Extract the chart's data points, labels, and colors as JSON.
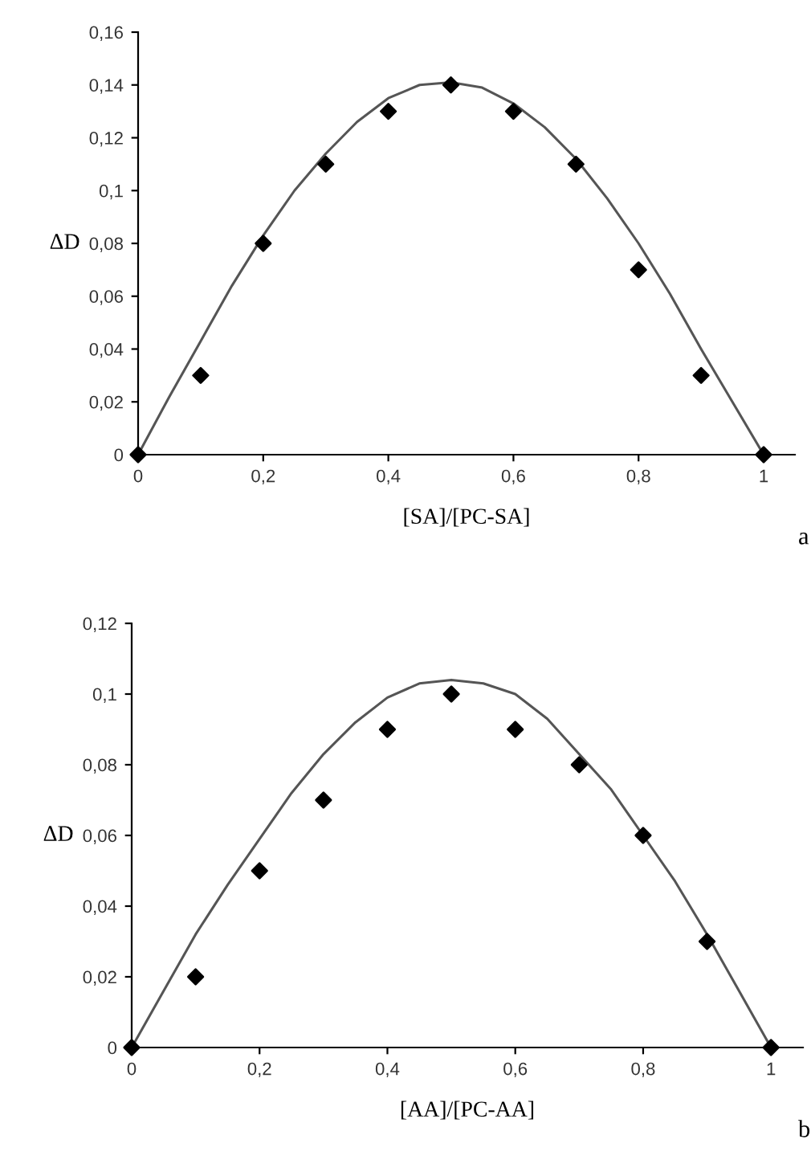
{
  "chart_data": [
    {
      "type": "scatter",
      "xlabel": "[SA]/[PC-SA]",
      "ylabel": "ΔD",
      "marker": "diamond",
      "grid": false,
      "legend": false,
      "annotations": [
        "a"
      ],
      "xlim": [
        0,
        1.05
      ],
      "ylim": [
        0,
        0.16
      ],
      "xticks": [
        0,
        {
          "value": 0.2,
          "label": "0,2"
        },
        {
          "value": 0.4,
          "label": "0,4"
        },
        {
          "value": 0.6,
          "label": "0,6"
        },
        {
          "value": 0.8,
          "label": "0,8"
        },
        1
      ],
      "yticks": [
        0,
        {
          "value": 0.02,
          "label": "0,02"
        },
        {
          "value": 0.04,
          "label": "0,04"
        },
        {
          "value": 0.06,
          "label": "0,06"
        },
        {
          "value": 0.08,
          "label": "0,08"
        },
        {
          "value": 0.1,
          "label": "0,1"
        },
        {
          "value": 0.12,
          "label": "0,12"
        },
        {
          "value": 0.14,
          "label": "0,14"
        },
        {
          "value": 0.16,
          "label": "0,16"
        }
      ],
      "series": [
        {
          "color": "#000000",
          "x": [
            0,
            0.1,
            0.2,
            0.3,
            0.4,
            0.5,
            0.6,
            0.7,
            0.8,
            0.9,
            1
          ],
          "values": [
            0,
            0.03,
            0.08,
            0.11,
            0.13,
            0.14,
            0.13,
            0.11,
            0.07,
            0.03,
            0
          ]
        },
        {
          "type": "line",
          "color": "#555555",
          "marker": "none",
          "x": [
            0,
            0.05,
            0.1,
            0.15,
            0.2,
            0.25,
            0.3,
            0.35,
            0.4,
            0.45,
            0.5,
            0.55,
            0.6,
            0.65,
            0.7,
            0.75,
            0.8,
            0.85,
            0.9,
            0.95,
            1
          ],
          "values": [
            0,
            0.022,
            0.043,
            0.064,
            0.083,
            0.1,
            0.114,
            0.126,
            0.135,
            0.14,
            0.141,
            0.139,
            0.133,
            0.124,
            0.112,
            0.097,
            0.08,
            0.061,
            0.04,
            0.02,
            0
          ]
        }
      ]
    },
    {
      "type": "scatter",
      "xlabel": "[AA]/[PC-AA]",
      "ylabel": "ΔD",
      "marker": "diamond",
      "grid": false,
      "legend": false,
      "annotations": [
        "b"
      ],
      "xlim": [
        0,
        1.05
      ],
      "ylim": [
        0,
        0.12
      ],
      "xticks": [
        0,
        {
          "value": 0.2,
          "label": "0,2"
        },
        {
          "value": 0.4,
          "label": "0,4"
        },
        {
          "value": 0.6,
          "label": "0,6"
        },
        {
          "value": 0.8,
          "label": "0,8"
        },
        1
      ],
      "yticks": [
        0,
        {
          "value": 0.02,
          "label": "0,02"
        },
        {
          "value": 0.04,
          "label": "0,04"
        },
        {
          "value": 0.06,
          "label": "0,06"
        },
        {
          "value": 0.08,
          "label": "0,08"
        },
        {
          "value": 0.1,
          "label": "0,1"
        },
        {
          "value": 0.12,
          "label": "0,12"
        }
      ],
      "series": [
        {
          "color": "#000000",
          "x": [
            0,
            0.1,
            0.2,
            0.3,
            0.4,
            0.5,
            0.6,
            0.7,
            0.8,
            0.9,
            1
          ],
          "values": [
            0,
            0.02,
            0.05,
            0.07,
            0.09,
            0.1,
            0.09,
            0.08,
            0.06,
            0.03,
            0
          ]
        },
        {
          "type": "line",
          "color": "#555555",
          "marker": "none",
          "x": [
            0,
            0.05,
            0.1,
            0.15,
            0.2,
            0.25,
            0.3,
            0.35,
            0.4,
            0.45,
            0.5,
            0.55,
            0.6,
            0.65,
            0.7,
            0.75,
            0.8,
            0.85,
            0.9,
            0.95,
            1
          ],
          "values": [
            0,
            0.016,
            0.032,
            0.046,
            0.059,
            0.072,
            0.083,
            0.092,
            0.099,
            0.103,
            0.104,
            0.103,
            0.1,
            0.093,
            0.083,
            0.073,
            0.06,
            0.047,
            0.032,
            0.016,
            0
          ]
        }
      ]
    }
  ]
}
